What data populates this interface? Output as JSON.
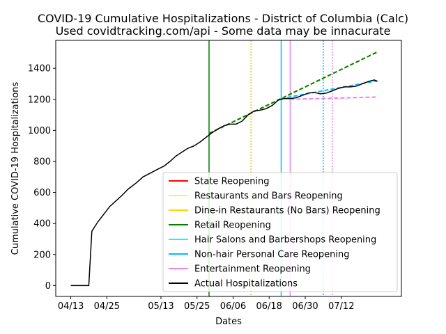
{
  "chart_data": {
    "type": "line",
    "title": "COVID-19 Cumulative Hospitalizations - District of Columbia (Calc)",
    "subtitle": "Used covidtracking.com/api - Some data may be innacurate",
    "xlabel": "Dates",
    "ylabel": "Cumulative COVID-19 Hospitalizations",
    "x_range": [
      "2020-04-08",
      "2020-08-01"
    ],
    "ylim": [
      -70,
      1580
    ],
    "x_ticks": [
      {
        "date": "2020-04-13",
        "label": "04/13"
      },
      {
        "date": "2020-04-25",
        "label": "04/25"
      },
      {
        "date": "2020-05-13",
        "label": "05/13"
      },
      {
        "date": "2020-05-25",
        "label": "05/25"
      },
      {
        "date": "2020-06-06",
        "label": "06/06"
      },
      {
        "date": "2020-06-18",
        "label": "06/18"
      },
      {
        "date": "2020-06-30",
        "label": "06/30"
      },
      {
        "date": "2020-07-12",
        "label": "07/12"
      }
    ],
    "y_ticks": [
      0,
      200,
      400,
      600,
      800,
      1000,
      1200,
      1400
    ],
    "grid": false,
    "legend_position": "lower-right",
    "legend": [
      {
        "label": "State Reopening",
        "color": "#ff0000"
      },
      {
        "label": "Restaurants and Bars Reopening",
        "color": "#ffff00"
      },
      {
        "label": "Dine-in Restaurants (No Bars) Reopening",
        "color": "#ffd700"
      },
      {
        "label": "Retail Reopening",
        "color": "#008000"
      },
      {
        "label": "Hair Salons and Barbershops Reopening",
        "color": "#00ffff"
      },
      {
        "label": "Non-hair Personal Care Reopening",
        "color": "#00bfff"
      },
      {
        "label": "Entertainment Reopening",
        "color": "#ee82ee"
      },
      {
        "label": "Actual Hospitalizations",
        "color": "#000000"
      }
    ],
    "vertical_markers": [
      {
        "date": "2020-05-29",
        "color": "#008000",
        "style": "solid"
      },
      {
        "date": "2020-06-12",
        "color": "#008000",
        "style": "dotted"
      },
      {
        "date": "2020-06-12",
        "color": "#ffd700",
        "style": "dotted"
      },
      {
        "date": "2020-06-22",
        "color": "#00bfff",
        "style": "solid"
      },
      {
        "date": "2020-06-25",
        "color": "#ee82ee",
        "style": "solid"
      },
      {
        "date": "2020-07-06",
        "color": "#00bfff",
        "style": "dotted"
      },
      {
        "date": "2020-07-09",
        "color": "#ee82ee",
        "style": "dotted"
      }
    ],
    "projections": [
      {
        "color": "#ffd700",
        "points": [
          [
            "2020-05-29",
            980
          ],
          [
            "2020-07-24",
            1505
          ]
        ]
      },
      {
        "color": "#008000",
        "points": [
          [
            "2020-05-29",
            980
          ],
          [
            "2020-07-24",
            1505
          ]
        ]
      },
      {
        "color": "#00bfff",
        "points": [
          [
            "2020-06-22",
            1205
          ],
          [
            "2020-07-24",
            1320
          ]
        ]
      },
      {
        "color": "#ee82ee",
        "points": [
          [
            "2020-06-25",
            1200
          ],
          [
            "2020-07-24",
            1215
          ]
        ]
      }
    ],
    "series": [
      {
        "name": "Actual Hospitalizations",
        "color": "#000000",
        "points": [
          [
            "2020-04-13",
            0
          ],
          [
            "2020-04-19",
            0
          ],
          [
            "2020-04-20",
            350
          ],
          [
            "2020-04-22",
            410
          ],
          [
            "2020-04-24",
            460
          ],
          [
            "2020-04-26",
            510
          ],
          [
            "2020-04-28",
            545
          ],
          [
            "2020-04-30",
            580
          ],
          [
            "2020-05-02",
            620
          ],
          [
            "2020-05-05",
            665
          ],
          [
            "2020-05-07",
            700
          ],
          [
            "2020-05-10",
            730
          ],
          [
            "2020-05-12",
            750
          ],
          [
            "2020-05-14",
            770
          ],
          [
            "2020-05-16",
            800
          ],
          [
            "2020-05-18",
            835
          ],
          [
            "2020-05-20",
            860
          ],
          [
            "2020-05-22",
            885
          ],
          [
            "2020-05-24",
            900
          ],
          [
            "2020-05-26",
            925
          ],
          [
            "2020-05-28",
            955
          ],
          [
            "2020-05-30",
            985
          ],
          [
            "2020-06-01",
            1010
          ],
          [
            "2020-06-03",
            1030
          ],
          [
            "2020-06-05",
            1040
          ],
          [
            "2020-06-07",
            1040
          ],
          [
            "2020-06-09",
            1060
          ],
          [
            "2020-06-11",
            1100
          ],
          [
            "2020-06-13",
            1125
          ],
          [
            "2020-06-15",
            1130
          ],
          [
            "2020-06-17",
            1140
          ],
          [
            "2020-06-19",
            1160
          ],
          [
            "2020-06-21",
            1195
          ],
          [
            "2020-06-23",
            1205
          ],
          [
            "2020-06-25",
            1205
          ],
          [
            "2020-06-27",
            1210
          ],
          [
            "2020-06-29",
            1225
          ],
          [
            "2020-07-01",
            1240
          ],
          [
            "2020-07-03",
            1245
          ],
          [
            "2020-07-05",
            1235
          ],
          [
            "2020-07-07",
            1240
          ],
          [
            "2020-07-09",
            1255
          ],
          [
            "2020-07-11",
            1270
          ],
          [
            "2020-07-13",
            1280
          ],
          [
            "2020-07-15",
            1280
          ],
          [
            "2020-07-17",
            1285
          ],
          [
            "2020-07-19",
            1300
          ],
          [
            "2020-07-21",
            1315
          ],
          [
            "2020-07-23",
            1325
          ],
          [
            "2020-07-24",
            1315
          ]
        ]
      }
    ]
  }
}
